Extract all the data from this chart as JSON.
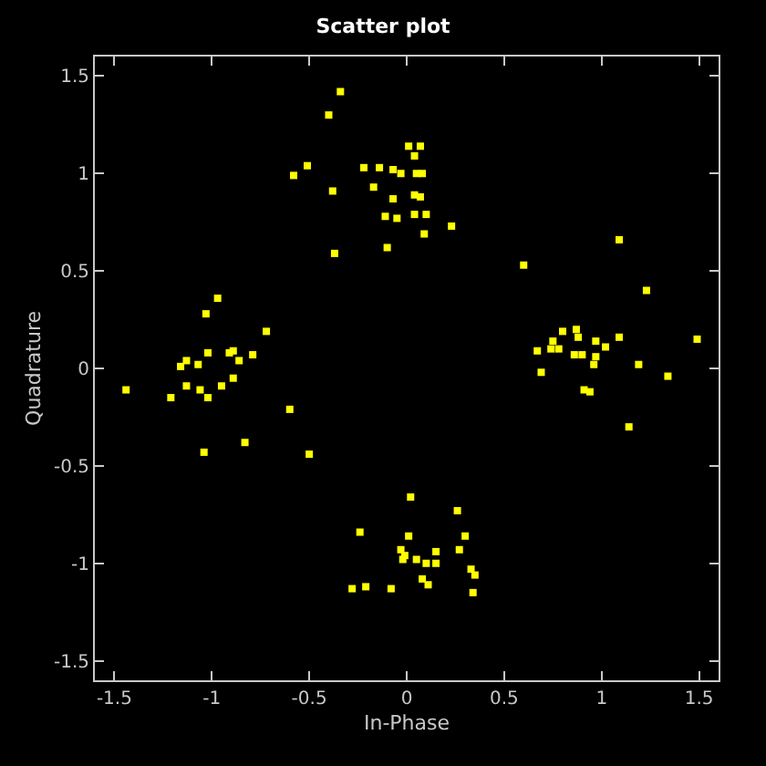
{
  "chart_data": {
    "type": "scatter",
    "title": "Scatter plot",
    "xlabel": "In-Phase",
    "ylabel": "Quadrature",
    "x": [
      -0.34,
      -0.4,
      -0.51,
      -0.58,
      -0.38,
      -0.37,
      -0.22,
      -0.14,
      -0.07,
      -0.03,
      -0.17,
      0.01,
      0.07,
      0.04,
      0.05,
      0.08,
      -0.07,
      0.04,
      0.07,
      -0.11,
      -0.05,
      0.04,
      0.1,
      0.09,
      0.23,
      -0.1,
      -0.97,
      -1.03,
      -0.72,
      -1.02,
      -1.13,
      -1.16,
      -1.07,
      -0.91,
      -0.89,
      -0.86,
      -0.79,
      -0.89,
      -1.13,
      -1.06,
      -0.95,
      -1.02,
      -1.21,
      -1.44,
      -0.6,
      -0.83,
      -1.04,
      -0.5,
      1.09,
      0.6,
      1.23,
      1.49,
      1.09,
      0.8,
      0.87,
      0.75,
      0.88,
      0.97,
      1.02,
      0.67,
      0.74,
      0.78,
      0.86,
      0.9,
      0.97,
      0.96,
      1.19,
      0.69,
      1.34,
      0.91,
      0.94,
      1.14,
      0.02,
      0.26,
      -0.24,
      0.01,
      0.3,
      -0.03,
      0.15,
      0.27,
      -0.01,
      -0.02,
      0.05,
      0.1,
      0.15,
      0.33,
      0.35,
      0.08,
      0.11,
      -0.28,
      -0.21,
      -0.08,
      0.34
    ],
    "series": [
      {
        "color": "#ffff00",
        "values": [
          1.42,
          1.3,
          1.04,
          0.99,
          0.91,
          0.59,
          1.03,
          1.03,
          1.02,
          1.0,
          0.93,
          1.14,
          1.14,
          1.09,
          1.0,
          1.0,
          0.87,
          0.89,
          0.88,
          0.78,
          0.77,
          0.79,
          0.79,
          0.69,
          0.73,
          0.62,
          0.36,
          0.28,
          0.19,
          0.08,
          0.04,
          0.01,
          0.02,
          0.08,
          0.09,
          0.04,
          0.07,
          -0.05,
          -0.09,
          -0.11,
          -0.09,
          -0.15,
          -0.15,
          -0.11,
          -0.21,
          -0.38,
          -0.43,
          -0.44,
          0.66,
          0.53,
          0.4,
          0.15,
          0.16,
          0.19,
          0.2,
          0.14,
          0.16,
          0.14,
          0.11,
          0.09,
          0.1,
          0.1,
          0.07,
          0.07,
          0.06,
          0.02,
          0.02,
          -0.02,
          -0.04,
          -0.11,
          -0.12,
          -0.3,
          -0.66,
          -0.73,
          -0.84,
          -0.86,
          -0.86,
          -0.93,
          -0.94,
          -0.93,
          -0.96,
          -0.98,
          -0.98,
          -1.0,
          -1.0,
          -1.03,
          -1.06,
          -1.08,
          -1.11,
          -1.13,
          -1.12,
          -1.13,
          -1.15
        ]
      }
    ],
    "xlim": [
      -1.6,
      1.6
    ],
    "ylim": [
      -1.6,
      1.6
    ],
    "xticks": [
      -1.5,
      -1,
      -0.5,
      0,
      0.5,
      1,
      1.5
    ],
    "yticks": [
      -1.5,
      -1,
      -0.5,
      0,
      0.5,
      1,
      1.5
    ],
    "marker": "square",
    "grid": false
  }
}
